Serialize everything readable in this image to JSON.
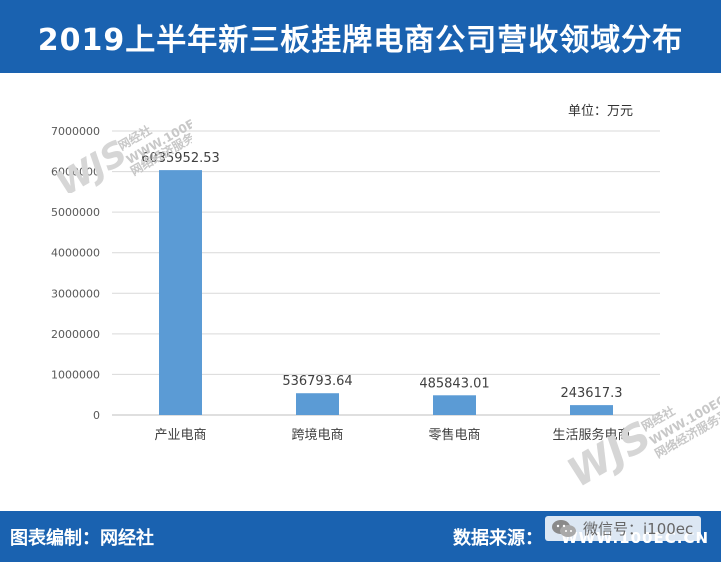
{
  "header": {
    "title": "2019上半年新三板挂牌电商公司营收领域分布"
  },
  "unit_label": "单位：万元",
  "watermark": {
    "logo": "WJS",
    "name": "网经社",
    "sub": "网络经济服务平台",
    "site": "WWW.100EC.CN"
  },
  "footer": {
    "left": "图表编制：网经社",
    "right": "数据来源：",
    "site": "WWW.100EC.CN"
  },
  "wechat": {
    "label": "微信号：i100ec"
  },
  "colors": {
    "header_bg": "#1a62b0",
    "bar": "#5b9bd5",
    "grid": "#d9d9d9"
  },
  "chart_data": {
    "type": "bar",
    "categories": [
      "产业电商",
      "跨境电商",
      "零售电商",
      "生活服务电商"
    ],
    "values": [
      6035952.53,
      536793.64,
      485843.01,
      243617.3
    ],
    "data_labels": [
      "6035952.53",
      "536793.64",
      "485843.01",
      "243617.3"
    ],
    "title": "",
    "xlabel": "",
    "ylabel": "",
    "ylim": [
      0,
      7000000
    ],
    "yticks": [
      0,
      1000000,
      2000000,
      3000000,
      4000000,
      5000000,
      6000000,
      7000000
    ],
    "ytick_labels": [
      "0",
      "1000000",
      "2000000",
      "3000000",
      "4000000",
      "5000000",
      "6000000",
      "7000000"
    ],
    "grid": true,
    "legend": "none"
  }
}
